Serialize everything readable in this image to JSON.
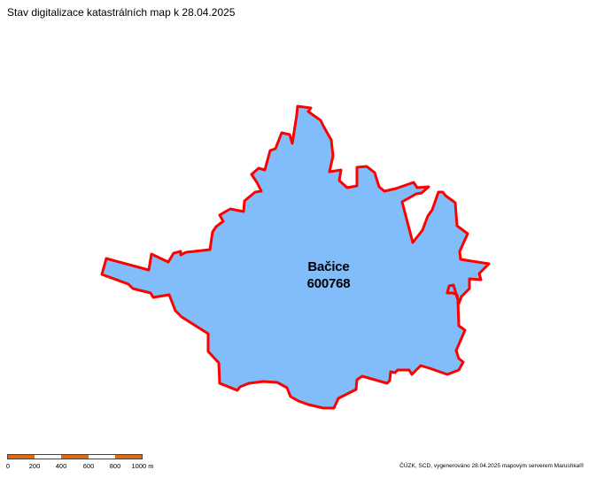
{
  "map": {
    "title": "Stav digitalizace katastrálních map k 28.04.2025",
    "area": {
      "name": "Bačice",
      "code": "600768",
      "fill_color": "#80bdfa",
      "border_color": "#ff0000"
    },
    "scale_bar": {
      "ticks": [
        "0",
        "200",
        "400",
        "600",
        "800",
        "1000 m"
      ],
      "colors": [
        "#e06a10",
        "#ffffff",
        "#e06a10",
        "#ffffff",
        "#e06a10"
      ]
    },
    "attribution": "ČÚZK, SCD, vygenerováno 28.04.2025 mapovým serverem Marushka®"
  }
}
